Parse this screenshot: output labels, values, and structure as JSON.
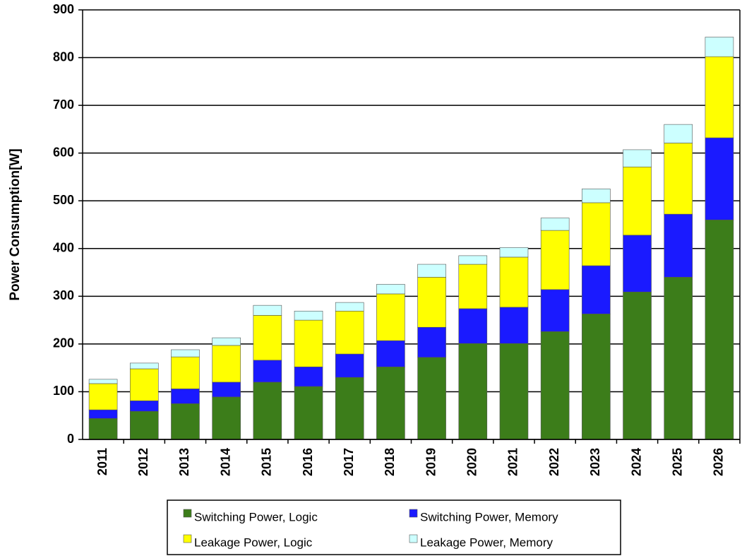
{
  "chart_data": {
    "type": "stacked_bar",
    "y_label": "Power Consumption[W]",
    "categories": [
      "2011",
      "2012",
      "2013",
      "2014",
      "2015",
      "2016",
      "2017",
      "2018",
      "2019",
      "2020",
      "2021",
      "2022",
      "2023",
      "2024",
      "2025",
      "2026"
    ],
    "series": [
      {
        "name": "Switching Power, Logic",
        "color": "#3c7d1a",
        "values": [
          44,
          59,
          75,
          89,
          120,
          111,
          130,
          152,
          172,
          201,
          201,
          226,
          263,
          309,
          340,
          460
        ]
      },
      {
        "name": "Switching Power, Memory",
        "color": "#1a1aff",
        "values": [
          18,
          22,
          31,
          31,
          46,
          41,
          49,
          55,
          63,
          73,
          76,
          88,
          101,
          119,
          132,
          172
        ]
      },
      {
        "name": "Leakage Power, Logic",
        "color": "#ffff00",
        "values": [
          55,
          67,
          67,
          77,
          94,
          98,
          90,
          98,
          105,
          93,
          105,
          124,
          132,
          143,
          149,
          170
        ]
      },
      {
        "name": "Leakage Power, Memory",
        "color": "#ccffff",
        "values": [
          9,
          12,
          15,
          16,
          21,
          19,
          18,
          20,
          27,
          18,
          20,
          26,
          29,
          36,
          39,
          41
        ]
      }
    ],
    "ylim": [
      0,
      900
    ],
    "yticks": [
      0,
      100,
      200,
      300,
      400,
      500,
      600,
      700,
      800,
      900
    ],
    "grid": true
  }
}
